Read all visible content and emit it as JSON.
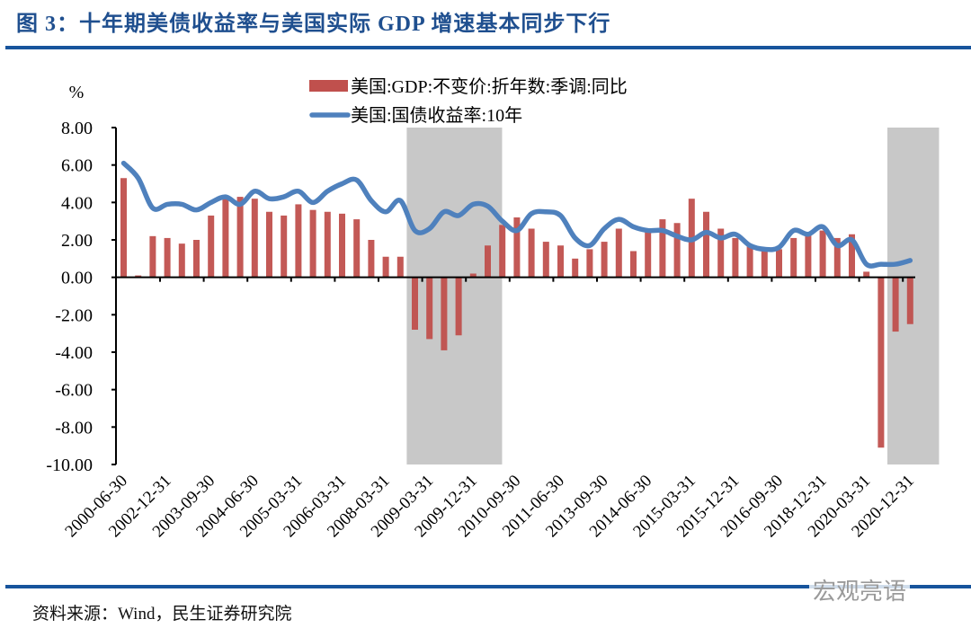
{
  "title": "图 3：十年期美债收益率与美国实际 GDP 增速基本同步下行",
  "source": "资料来源：Wind，民生证券研究院",
  "watermark": "宏观亮语",
  "colors": {
    "title": "#1f4f8f",
    "bar": "#c0504d",
    "line": "#4f81bd",
    "shade": "#c8c8c8",
    "rule": "#17549c"
  },
  "chart_data": {
    "type": "bar+line",
    "ylabel": "%",
    "ylim": [
      -10,
      8
    ],
    "yticks": [
      "8.00",
      "6.00",
      "4.00",
      "2.00",
      "0.00",
      "-2.00",
      "-4.00",
      "-6.00",
      "-8.00",
      "-10.00"
    ],
    "grid": false,
    "legend_placement": "top-center",
    "categories": [
      "2000-06-30",
      "",
      "",
      "2002-12-31",
      "",
      "",
      "2003-09-30",
      "",
      "",
      "2004-06-30",
      "",
      "",
      "2005-03-31",
      "",
      "",
      "2006-03-31",
      "",
      "",
      "2008-03-31",
      "",
      "",
      "2009-03-31",
      "",
      "",
      "2009-12-31",
      "",
      "",
      "2010-09-30",
      "",
      "",
      "2011-06-30",
      "",
      "",
      "2013-09-30",
      "",
      "",
      "2014-06-30",
      "",
      "",
      "2015-03-31",
      "",
      "",
      "2015-12-31",
      "",
      "",
      "2016-09-30",
      "",
      "",
      "2018-12-31",
      "",
      "",
      "2020-03-31",
      "",
      "",
      "2020-12-31"
    ],
    "tick_labels": [
      "2000-06-30",
      "2002-12-31",
      "2003-09-30",
      "2004-06-30",
      "2005-03-31",
      "2006-03-31",
      "2008-03-31",
      "2009-03-31",
      "2009-12-31",
      "2010-09-30",
      "2011-06-30",
      "2013-09-30",
      "2014-06-30",
      "2015-03-31",
      "2015-12-31",
      "2016-09-30",
      "2018-12-31",
      "2020-03-31",
      "2020-12-31"
    ],
    "series": [
      {
        "name": "美国:GDP:不变价:折年数:季调:同比",
        "type": "bar",
        "values": [
          5.3,
          0.1,
          2.2,
          2.1,
          1.8,
          2.0,
          3.3,
          4.2,
          4.3,
          4.2,
          3.5,
          3.3,
          3.9,
          3.6,
          3.5,
          3.4,
          3.1,
          2.0,
          1.1,
          1.1,
          -2.8,
          -3.3,
          -3.9,
          -3.1,
          0.2,
          1.7,
          2.8,
          3.2,
          2.6,
          1.9,
          1.7,
          1.0,
          1.5,
          1.9,
          2.6,
          1.4,
          2.5,
          3.1,
          2.9,
          4.2,
          3.5,
          2.6,
          2.1,
          1.7,
          1.4,
          1.5,
          2.1,
          2.3,
          2.5,
          2.1,
          2.3,
          0.3,
          -9.1,
          -2.9,
          -2.5
        ]
      },
      {
        "name": "美国:国债收益率:10年",
        "type": "line",
        "values": [
          6.1,
          5.3,
          3.7,
          3.9,
          3.9,
          3.6,
          4.0,
          4.3,
          3.9,
          4.6,
          4.2,
          4.3,
          4.6,
          4.0,
          4.6,
          5.0,
          5.2,
          4.1,
          3.5,
          4.1,
          2.5,
          2.6,
          3.5,
          3.3,
          3.9,
          3.8,
          3.0,
          2.5,
          3.4,
          3.5,
          3.3,
          2.1,
          1.7,
          2.6,
          3.1,
          2.7,
          2.5,
          2.5,
          2.2,
          2.0,
          2.4,
          2.1,
          2.3,
          1.7,
          1.5,
          1.6,
          2.5,
          2.3,
          2.7,
          1.7,
          2.0,
          0.7,
          0.7,
          0.7,
          0.9
        ]
      }
    ],
    "shaded_periods": [
      [
        "2008-03-31",
        "2009-12-31"
      ],
      [
        "2020-03-31",
        "2020-12-31"
      ]
    ]
  }
}
